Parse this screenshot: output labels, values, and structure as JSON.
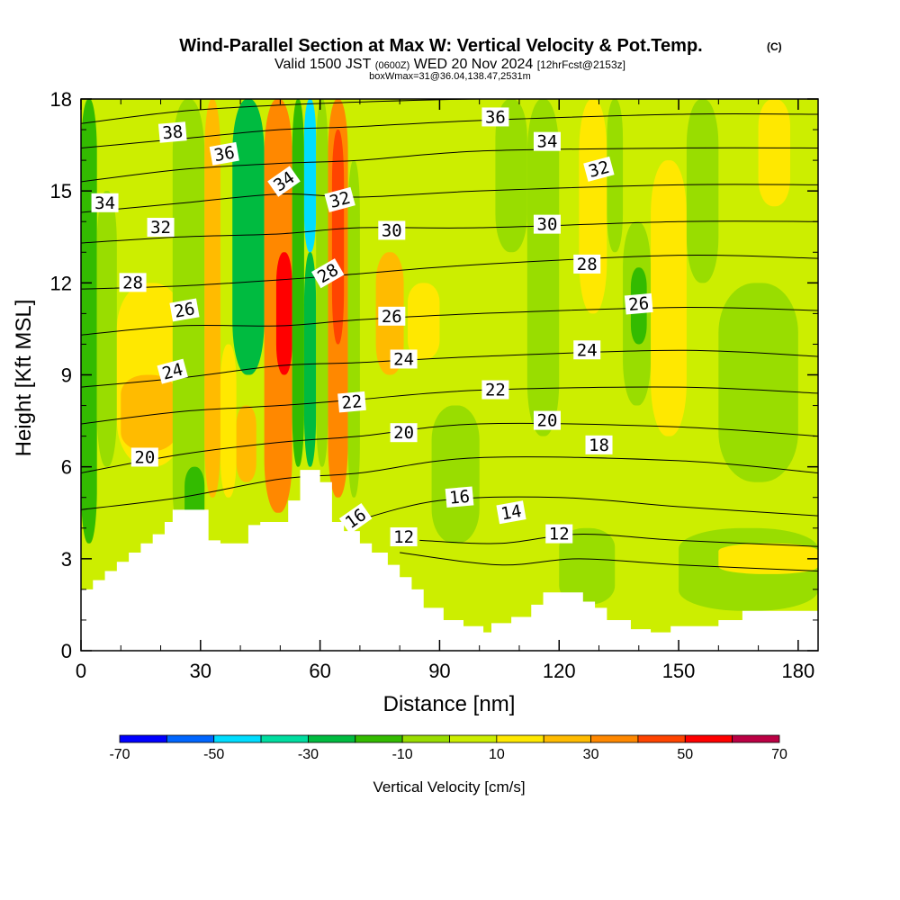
{
  "chart_data": {
    "type": "heatmap",
    "title": "Wind-Parallel Section at Max W: Vertical Velocity & Pot.Temp.",
    "title_mark": "(C)",
    "subtitle_main": "Valid 1500 JST",
    "subtitle_utc": "(0600Z)",
    "subtitle_date": "WED 20 Nov 2024",
    "subtitle_fcst": "[12hrFcst@2153z]",
    "subtitle2": "boxWmax=31@36.04,138.47,2531m",
    "xlabel": "Distance [nm]",
    "ylabel": "Height [Kft MSL]",
    "xlim": [
      0,
      185
    ],
    "ylim": [
      0,
      18
    ],
    "x_ticks": [
      "0",
      "30",
      "60",
      "90",
      "120",
      "150",
      "180"
    ],
    "y_ticks": [
      "0",
      "3",
      "6",
      "9",
      "12",
      "15",
      "18"
    ],
    "colorbar": {
      "label": "Vertical Velocity [cm/s]",
      "ticks": [
        "-70",
        "-50",
        "-30",
        "-10",
        "10",
        "30",
        "50",
        "70"
      ],
      "bounds": [
        -70,
        -60,
        -50,
        -40,
        -30,
        -20,
        -10,
        0,
        10,
        20,
        30,
        40,
        50,
        60,
        70
      ],
      "colors": [
        "#0000ff",
        "#0066ff",
        "#00ddff",
        "#00dda0",
        "#00bb40",
        "#33bb00",
        "#99dd00",
        "#ccee00",
        "#ffe800",
        "#ffbb00",
        "#ff8800",
        "#ff4400",
        "#ff0000",
        "#bb0044",
        "#660099"
      ]
    },
    "background_level_cm_s": 5,
    "terrain_kft": [
      [
        0,
        2.0
      ],
      [
        3,
        2.0
      ],
      [
        3,
        2.3
      ],
      [
        6,
        2.3
      ],
      [
        6,
        2.6
      ],
      [
        9,
        2.6
      ],
      [
        9,
        2.9
      ],
      [
        12,
        2.9
      ],
      [
        12,
        3.2
      ],
      [
        15,
        3.2
      ],
      [
        15,
        3.5
      ],
      [
        18,
        3.5
      ],
      [
        18,
        3.8
      ],
      [
        21,
        3.8
      ],
      [
        21,
        4.2
      ],
      [
        23,
        4.2
      ],
      [
        23,
        4.6
      ],
      [
        32,
        4.6
      ],
      [
        32,
        3.6
      ],
      [
        35,
        3.6
      ],
      [
        35,
        3.5
      ],
      [
        42,
        3.5
      ],
      [
        42,
        4.1
      ],
      [
        45,
        4.1
      ],
      [
        45,
        4.2
      ],
      [
        52,
        4.2
      ],
      [
        52,
        4.9
      ],
      [
        55,
        4.9
      ],
      [
        55,
        5.9
      ],
      [
        60,
        5.9
      ],
      [
        60,
        5.5
      ],
      [
        63,
        5.5
      ],
      [
        63,
        4.2
      ],
      [
        66,
        4.2
      ],
      [
        66,
        3.9
      ],
      [
        70,
        3.9
      ],
      [
        70,
        3.5
      ],
      [
        73,
        3.5
      ],
      [
        73,
        3.2
      ],
      [
        77,
        3.2
      ],
      [
        77,
        2.8
      ],
      [
        80,
        2.8
      ],
      [
        80,
        2.4
      ],
      [
        83,
        2.4
      ],
      [
        83,
        2.0
      ],
      [
        86,
        2.0
      ],
      [
        86,
        1.4
      ],
      [
        91,
        1.4
      ],
      [
        91,
        1.0
      ],
      [
        96,
        1.0
      ],
      [
        96,
        0.8
      ],
      [
        101,
        0.8
      ],
      [
        101,
        0.6
      ],
      [
        103,
        0.6
      ],
      [
        103,
        0.9
      ],
      [
        108,
        0.9
      ],
      [
        108,
        1.1
      ],
      [
        113,
        1.1
      ],
      [
        113,
        1.5
      ],
      [
        116,
        1.5
      ],
      [
        116,
        1.9
      ],
      [
        126,
        1.9
      ],
      [
        126,
        1.6
      ],
      [
        129,
        1.6
      ],
      [
        129,
        1.4
      ],
      [
        132,
        1.4
      ],
      [
        132,
        1.0
      ],
      [
        138,
        1.0
      ],
      [
        138,
        0.7
      ],
      [
        143,
        0.7
      ],
      [
        143,
        0.6
      ],
      [
        148,
        0.6
      ],
      [
        148,
        0.8
      ],
      [
        160,
        0.8
      ],
      [
        160,
        1.0
      ],
      [
        166,
        1.0
      ],
      [
        166,
        1.3
      ],
      [
        185,
        1.3
      ]
    ],
    "velocity_cells": [
      {
        "x": [
          0,
          4
        ],
        "y": [
          3.5,
          18
        ],
        "v": -15
      },
      {
        "x": [
          4,
          9
        ],
        "y": [
          6,
          15
        ],
        "v": -3
      },
      {
        "x": [
          9,
          26
        ],
        "y": [
          6,
          12
        ],
        "v": 15
      },
      {
        "x": [
          10,
          24
        ],
        "y": [
          6.5,
          9
        ],
        "v": 25
      },
      {
        "x": [
          23,
          31
        ],
        "y": [
          3.5,
          18
        ],
        "v": -3
      },
      {
        "x": [
          26,
          31
        ],
        "y": [
          3.5,
          6
        ],
        "v": -20
      },
      {
        "x": [
          31,
          35
        ],
        "y": [
          5,
          18
        ],
        "v": 25
      },
      {
        "x": [
          35,
          39
        ],
        "y": [
          5,
          10
        ],
        "v": 15
      },
      {
        "x": [
          38,
          46
        ],
        "y": [
          9,
          18
        ],
        "v": -22
      },
      {
        "x": [
          39,
          44
        ],
        "y": [
          5.5,
          8
        ],
        "v": 25
      },
      {
        "x": [
          46,
          53
        ],
        "y": [
          4.5,
          18
        ],
        "v": 35
      },
      {
        "x": [
          49,
          53
        ],
        "y": [
          9,
          13
        ],
        "v": 55
      },
      {
        "x": [
          53,
          56
        ],
        "y": [
          6,
          18
        ],
        "v": -15
      },
      {
        "x": [
          56,
          59
        ],
        "y": [
          13,
          18
        ],
        "v": -45
      },
      {
        "x": [
          56,
          59
        ],
        "y": [
          6,
          13
        ],
        "v": -25
      },
      {
        "x": [
          59,
          62
        ],
        "y": [
          6,
          18
        ],
        "v": -8
      },
      {
        "x": [
          62,
          67
        ],
        "y": [
          5,
          18
        ],
        "v": 35
      },
      {
        "x": [
          63,
          66
        ],
        "y": [
          10,
          17
        ],
        "v": 45
      },
      {
        "x": [
          67,
          70
        ],
        "y": [
          5,
          16
        ],
        "v": -3
      },
      {
        "x": [
          74,
          81
        ],
        "y": [
          9,
          13
        ],
        "v": 22
      },
      {
        "x": [
          82,
          90
        ],
        "y": [
          9.5,
          12
        ],
        "v": 15
      },
      {
        "x": [
          88,
          100
        ],
        "y": [
          3.5,
          8
        ],
        "v": -8
      },
      {
        "x": [
          104,
          112
        ],
        "y": [
          13,
          18
        ],
        "v": -8
      },
      {
        "x": [
          112,
          120
        ],
        "y": [
          7,
          18
        ],
        "v": -3
      },
      {
        "x": [
          120,
          134
        ],
        "y": [
          1.5,
          4
        ],
        "v": -8
      },
      {
        "x": [
          125,
          132
        ],
        "y": [
          11,
          18
        ],
        "v": 15
      },
      {
        "x": [
          132,
          136
        ],
        "y": [
          13,
          18
        ],
        "v": -8
      },
      {
        "x": [
          136,
          143
        ],
        "y": [
          8,
          14
        ],
        "v": -8
      },
      {
        "x": [
          138,
          142
        ],
        "y": [
          10,
          12.5
        ],
        "v": -20
      },
      {
        "x": [
          143,
          152
        ],
        "y": [
          7,
          16
        ],
        "v": 15
      },
      {
        "x": [
          152,
          160
        ],
        "y": [
          12,
          18
        ],
        "v": -8
      },
      {
        "x": [
          150,
          185
        ],
        "y": [
          1.3,
          4
        ],
        "v": -8
      },
      {
        "x": [
          160,
          180
        ],
        "y": [
          5.5,
          12
        ],
        "v": -3
      },
      {
        "x": [
          170,
          178
        ],
        "y": [
          14.5,
          18
        ],
        "v": 15
      },
      {
        "x": [
          160,
          185
        ],
        "y": [
          2.5,
          3.5
        ],
        "v": 15
      }
    ],
    "theta_contours": [
      {
        "level": 12,
        "points": [
          [
            80,
            3.2
          ],
          [
            105,
            2.8
          ],
          [
            125,
            3.0
          ],
          [
            150,
            2.8
          ],
          [
            185,
            2.6
          ]
        ]
      },
      {
        "level": 14,
        "points": [
          [
            85,
            3.6
          ],
          [
            105,
            3.5
          ],
          [
            125,
            3.8
          ],
          [
            150,
            3.6
          ],
          [
            185,
            3.4
          ]
        ]
      },
      {
        "level": 16,
        "points": [
          [
            68,
            4.2
          ],
          [
            90,
            4.9
          ],
          [
            120,
            5.0
          ],
          [
            150,
            4.7
          ],
          [
            185,
            4.4
          ]
        ]
      },
      {
        "level": 18,
        "points": [
          [
            0,
            4.6
          ],
          [
            25,
            5.0
          ],
          [
            50,
            5.6
          ],
          [
            70,
            5.8
          ],
          [
            100,
            6.3
          ],
          [
            150,
            6.2
          ],
          [
            185,
            5.8
          ]
        ]
      },
      {
        "level": 20,
        "points": [
          [
            0,
            5.8
          ],
          [
            25,
            6.4
          ],
          [
            50,
            6.8
          ],
          [
            70,
            7.0
          ],
          [
            100,
            7.4
          ],
          [
            150,
            7.3
          ],
          [
            185,
            7.0
          ]
        ]
      },
      {
        "level": 22,
        "points": [
          [
            0,
            7.4
          ],
          [
            25,
            7.8
          ],
          [
            50,
            8.0
          ],
          [
            70,
            8.2
          ],
          [
            100,
            8.5
          ],
          [
            150,
            8.6
          ],
          [
            185,
            8.4
          ]
        ]
      },
      {
        "level": 24,
        "points": [
          [
            0,
            8.6
          ],
          [
            25,
            8.9
          ],
          [
            50,
            9.3
          ],
          [
            70,
            9.4
          ],
          [
            100,
            9.6
          ],
          [
            150,
            9.8
          ],
          [
            185,
            9.6
          ]
        ]
      },
      {
        "level": 26,
        "points": [
          [
            0,
            10.3
          ],
          [
            25,
            10.6
          ],
          [
            50,
            10.6
          ],
          [
            70,
            10.8
          ],
          [
            100,
            11.0
          ],
          [
            150,
            11.2
          ],
          [
            185,
            11.1
          ]
        ]
      },
      {
        "level": 28,
        "points": [
          [
            0,
            11.8
          ],
          [
            25,
            11.9
          ],
          [
            50,
            12.1
          ],
          [
            70,
            12.3
          ],
          [
            100,
            12.6
          ],
          [
            150,
            12.9
          ],
          [
            185,
            12.8
          ]
        ]
      },
      {
        "level": 30,
        "points": [
          [
            0,
            13.3
          ],
          [
            25,
            13.5
          ],
          [
            50,
            13.6
          ],
          [
            70,
            13.8
          ],
          [
            100,
            13.8
          ],
          [
            150,
            14.0
          ],
          [
            185,
            14.0
          ]
        ]
      },
      {
        "level": 32,
        "points": [
          [
            0,
            14.3
          ],
          [
            25,
            14.6
          ],
          [
            50,
            14.9
          ],
          [
            70,
            14.8
          ],
          [
            100,
            15.0
          ],
          [
            150,
            15.2
          ],
          [
            185,
            15.2
          ]
        ]
      },
      {
        "level": 34,
        "points": [
          [
            0,
            15.3
          ],
          [
            25,
            15.7
          ],
          [
            50,
            15.9
          ],
          [
            70,
            16.0
          ],
          [
            100,
            16.3
          ],
          [
            150,
            16.4
          ],
          [
            185,
            16.4
          ]
        ]
      },
      {
        "level": 36,
        "points": [
          [
            0,
            16.4
          ],
          [
            25,
            16.7
          ],
          [
            50,
            17.0
          ],
          [
            70,
            17.1
          ],
          [
            100,
            17.3
          ],
          [
            150,
            17.5
          ],
          [
            185,
            17.5
          ]
        ]
      },
      {
        "level": 38,
        "points": [
          [
            0,
            17.2
          ],
          [
            25,
            17.6
          ],
          [
            50,
            17.8
          ],
          [
            70,
            17.9
          ],
          [
            100,
            18.0
          ],
          [
            150,
            18.0
          ],
          [
            185,
            18.0
          ]
        ]
      }
    ],
    "contour_labels": [
      {
        "text": "38",
        "x": 23,
        "y": 16.9,
        "rot": -5
      },
      {
        "text": "36",
        "x": 36,
        "y": 16.2,
        "rot": -10
      },
      {
        "text": "36",
        "x": 104,
        "y": 17.4,
        "rot": 0
      },
      {
        "text": "34",
        "x": 6,
        "y": 14.6,
        "rot": 0
      },
      {
        "text": "34",
        "x": 51,
        "y": 15.3,
        "rot": -35
      },
      {
        "text": "34",
        "x": 117,
        "y": 16.6,
        "rot": 0
      },
      {
        "text": "32",
        "x": 20,
        "y": 13.8,
        "rot": 0
      },
      {
        "text": "32",
        "x": 65,
        "y": 14.7,
        "rot": -15
      },
      {
        "text": "32",
        "x": 130,
        "y": 15.7,
        "rot": -15
      },
      {
        "text": "30",
        "x": 78,
        "y": 13.7,
        "rot": 0
      },
      {
        "text": "30",
        "x": 117,
        "y": 13.9,
        "rot": 0
      },
      {
        "text": "28",
        "x": 13,
        "y": 12.0,
        "rot": 0
      },
      {
        "text": "28",
        "x": 62,
        "y": 12.3,
        "rot": -30
      },
      {
        "text": "28",
        "x": 127,
        "y": 12.6,
        "rot": 0
      },
      {
        "text": "26",
        "x": 26,
        "y": 11.1,
        "rot": -10
      },
      {
        "text": "26",
        "x": 78,
        "y": 10.9,
        "rot": 0
      },
      {
        "text": "26",
        "x": 140,
        "y": 11.3,
        "rot": -5
      },
      {
        "text": "24",
        "x": 23,
        "y": 9.1,
        "rot": -15
      },
      {
        "text": "24",
        "x": 81,
        "y": 9.5,
        "rot": 0
      },
      {
        "text": "24",
        "x": 127,
        "y": 9.8,
        "rot": 0
      },
      {
        "text": "22",
        "x": 68,
        "y": 8.1,
        "rot": -5
      },
      {
        "text": "22",
        "x": 104,
        "y": 8.5,
        "rot": 0
      },
      {
        "text": "20",
        "x": 16,
        "y": 6.3,
        "rot": 0
      },
      {
        "text": "20",
        "x": 81,
        "y": 7.1,
        "rot": 0
      },
      {
        "text": "20",
        "x": 117,
        "y": 7.5,
        "rot": 0
      },
      {
        "text": "18",
        "x": 130,
        "y": 6.7,
        "rot": 0
      },
      {
        "text": "16",
        "x": 95,
        "y": 5.0,
        "rot": -5
      },
      {
        "text": "16",
        "x": 69,
        "y": 4.3,
        "rot": -35
      },
      {
        "text": "14",
        "x": 108,
        "y": 4.5,
        "rot": -10
      },
      {
        "text": "12",
        "x": 81,
        "y": 3.7,
        "rot": 0
      },
      {
        "text": "12",
        "x": 120,
        "y": 3.8,
        "rot": 0
      }
    ]
  }
}
